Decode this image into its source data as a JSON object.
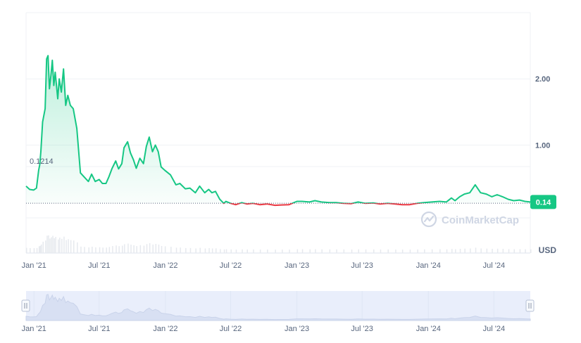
{
  "colors": {
    "up": "#16c784",
    "down": "#ea3943",
    "grid": "#eff2f5",
    "axis_text": "#58667e",
    "watermark": "#cfd6e4",
    "navigator_fill": "#e9eefb",
    "navigator_line": "#c9d3ea"
  },
  "watermark_text": "CoinMarketCap",
  "unit_label": "USD",
  "baseline_label": "0.1214",
  "current_price_label": "0.14",
  "chart_data": {
    "type": "line",
    "title": "",
    "xlabel": "",
    "ylabel": "",
    "baseline": 0.1214,
    "current_value": 0.14,
    "y_ticks": [
      1.0,
      2.0
    ],
    "y_tick_labels": [
      "1.00",
      "2.00"
    ],
    "ylim": [
      -0.1,
      3.0
    ],
    "x_tick_labels": [
      "Jan '21",
      "Jul '21",
      "Jan '22",
      "Jul '22",
      "Jan '23",
      "Jul '23",
      "Jan '24",
      "Jul '24"
    ],
    "x_tick_dates": [
      "2021-01-01",
      "2021-07-01",
      "2022-01-01",
      "2022-07-01",
      "2023-01-01",
      "2023-07-01",
      "2024-01-01",
      "2024-07-01"
    ],
    "xlim": [
      "2020-12-10",
      "2024-10-10"
    ],
    "grid": true,
    "series": [
      {
        "x": [
          "2020-12-10",
          "2020-12-20",
          "2020-12-31",
          "2021-01-08",
          "2021-01-14",
          "2021-01-17",
          "2021-01-20",
          "2021-01-25",
          "2021-02-01",
          "2021-02-05",
          "2021-02-09",
          "2021-02-13",
          "2021-02-17",
          "2021-02-21",
          "2021-02-25",
          "2021-03-01",
          "2021-03-08",
          "2021-03-12",
          "2021-03-18",
          "2021-03-24",
          "2021-03-30",
          "2021-04-05",
          "2021-04-12",
          "2021-04-20",
          "2021-04-30",
          "2021-05-10",
          "2021-05-20",
          "2021-06-01",
          "2021-06-10",
          "2021-06-20",
          "2021-07-01",
          "2021-07-10",
          "2021-07-20",
          "2021-07-28",
          "2021-08-06",
          "2021-08-16",
          "2021-08-24",
          "2021-09-02",
          "2021-09-08",
          "2021-09-18",
          "2021-09-26",
          "2021-10-04",
          "2021-10-12",
          "2021-10-22",
          "2021-11-01",
          "2021-11-09",
          "2021-11-17",
          "2021-11-26",
          "2021-12-04",
          "2021-12-12",
          "2021-12-20",
          "2021-12-30",
          "2022-01-15",
          "2022-01-30",
          "2022-02-10",
          "2022-02-25",
          "2022-03-10",
          "2022-03-25",
          "2022-04-06",
          "2022-04-20",
          "2022-05-01",
          "2022-05-10",
          "2022-05-20",
          "2022-06-01",
          "2022-06-12",
          "2022-06-18",
          "2022-07-01",
          "2022-07-15",
          "2022-08-01",
          "2022-08-15",
          "2022-09-01",
          "2022-09-20",
          "2022-10-10",
          "2022-11-01",
          "2022-11-20",
          "2022-12-10",
          "2023-01-01",
          "2023-01-15",
          "2023-02-05",
          "2023-02-20",
          "2023-03-10",
          "2023-04-01",
          "2023-04-20",
          "2023-05-10",
          "2023-06-01",
          "2023-06-20",
          "2023-07-10",
          "2023-08-01",
          "2023-08-20",
          "2023-09-10",
          "2023-10-01",
          "2023-10-20",
          "2023-11-10",
          "2023-12-01",
          "2023-12-20",
          "2024-01-10",
          "2024-02-01",
          "2024-02-20",
          "2024-03-05",
          "2024-03-15",
          "2024-03-28",
          "2024-04-10",
          "2024-04-25",
          "2024-05-10",
          "2024-05-25",
          "2024-06-10",
          "2024-06-25",
          "2024-07-10",
          "2024-07-25",
          "2024-08-10",
          "2024-08-25",
          "2024-09-10",
          "2024-09-25",
          "2024-10-10"
        ],
        "values": [
          0.38,
          0.33,
          0.32,
          0.35,
          0.62,
          0.7,
          0.9,
          1.35,
          1.55,
          2.3,
          2.35,
          1.85,
          2.05,
          2.28,
          1.9,
          2.1,
          1.7,
          2.0,
          1.8,
          2.15,
          1.6,
          1.75,
          1.6,
          1.55,
          1.25,
          0.58,
          0.52,
          0.45,
          0.56,
          0.45,
          0.48,
          0.42,
          0.42,
          0.52,
          0.65,
          0.76,
          0.64,
          0.72,
          0.96,
          1.05,
          0.88,
          0.78,
          0.65,
          0.8,
          0.72,
          0.98,
          1.12,
          0.9,
          1.0,
          0.9,
          0.67,
          0.62,
          0.55,
          0.4,
          0.42,
          0.34,
          0.35,
          0.28,
          0.38,
          0.28,
          0.33,
          0.28,
          0.3,
          0.18,
          0.12,
          0.15,
          0.12,
          0.1,
          0.13,
          0.11,
          0.12,
          0.1,
          0.11,
          0.09,
          0.095,
          0.1,
          0.15,
          0.15,
          0.14,
          0.16,
          0.14,
          0.13,
          0.13,
          0.12,
          0.115,
          0.14,
          0.12,
          0.125,
          0.11,
          0.12,
          0.11,
          0.1,
          0.1,
          0.12,
          0.13,
          0.14,
          0.15,
          0.14,
          0.2,
          0.16,
          0.22,
          0.26,
          0.28,
          0.4,
          0.28,
          0.26,
          0.22,
          0.25,
          0.22,
          0.18,
          0.16,
          0.17,
          0.15,
          0.14
        ]
      }
    ]
  }
}
